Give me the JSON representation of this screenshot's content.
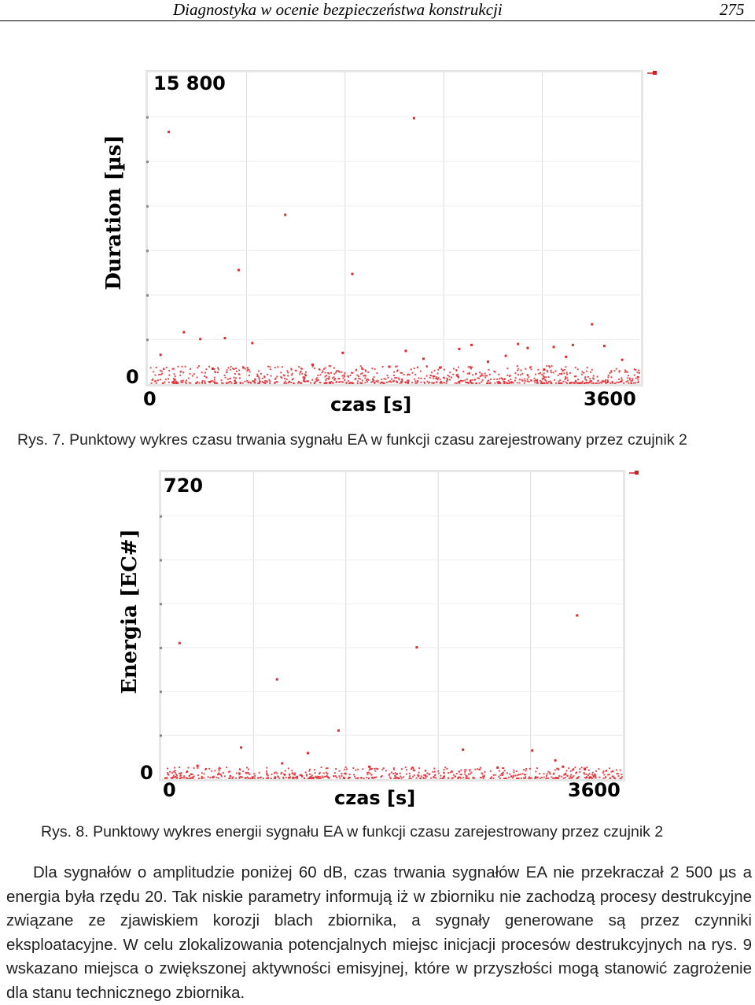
{
  "header": {
    "title": "Diagnostyka w ocenie bezpieczeństwa konstrukcji",
    "page_number": "275"
  },
  "chart_data": [
    {
      "type": "scatter",
      "title": "",
      "ylabel": "Duration [µs]",
      "xlabel": "czas [s]",
      "xlim": [
        0,
        3600
      ],
      "ylim": [
        0,
        15800
      ],
      "y_max_label": "15 800",
      "y_min_label": "0",
      "x_min_label": "0",
      "x_max_label": "3600",
      "color": "#e0282e",
      "grid": true,
      "points": [
        [
          150,
          12800
        ],
        [
          1940,
          13500
        ],
        [
          3240,
          3050
        ],
        [
          1000,
          8600
        ],
        [
          660,
          5800
        ],
        [
          1490,
          5600
        ],
        [
          260,
          2650
        ],
        [
          380,
          2300
        ],
        [
          560,
          2350
        ],
        [
          2270,
          1800
        ],
        [
          2360,
          2000
        ],
        [
          2700,
          2050
        ],
        [
          2770,
          1850
        ],
        [
          2960,
          1900
        ],
        [
          3100,
          2000
        ],
        [
          3330,
          1950
        ],
        [
          760,
          2100
        ],
        [
          1420,
          1600
        ],
        [
          1880,
          1700
        ],
        [
          2010,
          1300
        ],
        [
          2610,
          1450
        ],
        [
          3050,
          1400
        ],
        [
          90,
          1500
        ],
        [
          1200,
          1000
        ],
        [
          2480,
          1150
        ],
        [
          3460,
          1250
        ],
        [
          470,
          800
        ],
        [
          1760,
          900
        ],
        [
          2130,
          850
        ],
        [
          2890,
          750
        ]
      ],
      "series_density_note": ""
    },
    {
      "type": "scatter",
      "title": "",
      "ylabel": "Energia [EC#]",
      "xlabel": "czas [s]",
      "xlim": [
        0,
        3600
      ],
      "ylim": [
        0,
        720
      ],
      "y_max_label": "720",
      "y_min_label": "0",
      "x_min_label": "0",
      "x_max_label": "3600",
      "color": "#e0282e",
      "grid": true,
      "points": [
        [
          140,
          320
        ],
        [
          1990,
          310
        ],
        [
          3240,
          385
        ],
        [
          900,
          235
        ],
        [
          1380,
          115
        ],
        [
          620,
          75
        ],
        [
          1140,
          62
        ],
        [
          2350,
          70
        ],
        [
          2890,
          68
        ],
        [
          3130,
          30
        ],
        [
          3300,
          25
        ],
        [
          280,
          32
        ],
        [
          940,
          38
        ],
        [
          1620,
          30
        ],
        [
          2620,
          28
        ],
        [
          3070,
          45
        ]
      ]
    }
  ],
  "captions": {
    "fig7": "Rys. 7. Punktowy wykres czasu trwania sygnału EA w funkcji czasu zarejestrowany przez czujnik 2",
    "fig8": "Rys. 8. Punktowy wykres energii sygnału EA w funkcji czasu zarejestrowany przez czujnik 2"
  },
  "body_text": "Dla sygnałów o amplitudzie poniżej 60 dB, czas trwania sygnałów EA nie przekraczał 2 500 µs a energia była rzędu 20. Tak niskie parametry informują iż w zbiorniku nie zachodzą procesy destrukcyjne związane ze zjawiskiem korozji blach zbiornika, a sygnały generowane są przez czynniki eksploatacyjne. W celu zlokalizowania potencjalnych miejsc inicjacji procesów destrukcyjnych na rys. 9 wskazano miejsca o zwiększonej aktywności emisyjnej, które w przyszłości mogą stanowić zagrożenie dla stanu technicznego zbiornika."
}
